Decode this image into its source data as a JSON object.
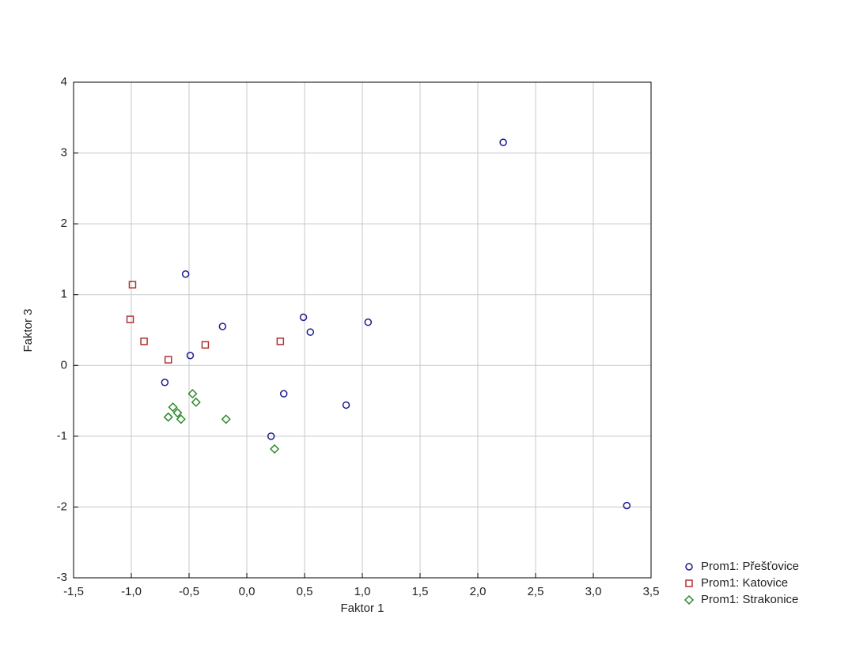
{
  "chart_data": {
    "type": "scatter",
    "x_label": "Faktor 1",
    "y_label": "Faktor 3",
    "xlim": [
      -1.5,
      3.5
    ],
    "ylim": [
      -3,
      4
    ],
    "xticks": [
      {
        "value": -1.5,
        "label": "-1,5"
      },
      {
        "value": -1.0,
        "label": "-1,0"
      },
      {
        "value": -0.5,
        "label": "-0,5"
      },
      {
        "value": 0,
        "label": "0,0"
      },
      {
        "value": 0.5,
        "label": "0,5"
      },
      {
        "value": 1.0,
        "label": "1,0"
      },
      {
        "value": 1.5,
        "label": "1,5"
      },
      {
        "value": 2.0,
        "label": "2,0"
      },
      {
        "value": 2.5,
        "label": "2,5"
      },
      {
        "value": 3.0,
        "label": "3,0"
      },
      {
        "value": 3.5,
        "label": "3,5"
      }
    ],
    "yticks": [
      4,
      3,
      2,
      1,
      0,
      -1,
      -2,
      -3
    ],
    "grid": true,
    "legend": "bottom-right",
    "series": [
      {
        "name": "Prom1: Přešťovice",
        "color": "#1c1c8c",
        "marker": "circle",
        "x": [
          2.22,
          -0.53,
          -0.21,
          0.49,
          0.55,
          1.05,
          -0.49,
          -0.71,
          0.32,
          0.86,
          0.21,
          3.29
        ],
        "values": [
          3.15,
          1.29,
          0.55,
          0.68,
          0.47,
          0.61,
          0.14,
          -0.24,
          -0.4,
          -0.56,
          -1.0,
          -1.98
        ]
      },
      {
        "name": "Prom1: Katovice",
        "color": "#b03030",
        "marker": "square",
        "x": [
          -0.99,
          -1.01,
          -0.89,
          -0.68,
          -0.36,
          0.29
        ],
        "values": [
          1.14,
          0.65,
          0.34,
          0.08,
          0.29,
          0.34
        ]
      },
      {
        "name": "Prom1: Strakonice",
        "color": "#2a8a2a",
        "marker": "diamond",
        "x": [
          -0.47,
          -0.44,
          -0.64,
          -0.6,
          -0.68,
          -0.57,
          -0.18,
          0.24
        ],
        "values": [
          -0.4,
          -0.52,
          -0.59,
          -0.67,
          -0.73,
          -0.76,
          -0.76,
          -1.18
        ]
      }
    ]
  }
}
